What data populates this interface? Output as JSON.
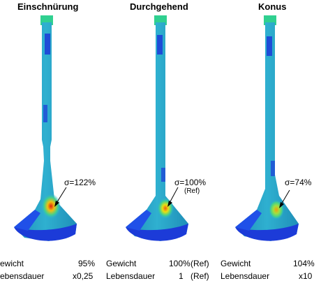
{
  "panels": [
    {
      "title": "Einschnürung",
      "stress": "σ=122%",
      "stress_ref": "",
      "weight_label": "ewicht",
      "weight_value": "95%",
      "weight_ref": "",
      "life_label": "ebensdauer",
      "life_value": "x0,25",
      "life_ref": ""
    },
    {
      "title": "Durchgehend",
      "stress": "σ=100%",
      "stress_ref": "(Ref)",
      "weight_label": "Gewicht",
      "weight_value": "100%",
      "weight_ref": "(Ref)",
      "life_label": "Lebensdauer",
      "life_value": "1",
      "life_ref": "(Ref)"
    },
    {
      "title": "Konus",
      "stress": "σ=74%",
      "stress_ref": "",
      "weight_label": "Gewicht",
      "weight_value": "104%",
      "weight_ref": "",
      "life_label": "Lebensdauer",
      "life_value": "x10",
      "life_ref": ""
    }
  ],
  "colors": {
    "stem": "#2aa6c8",
    "low": "#1c3bd8",
    "mid": "#3fd0a0",
    "high": "#e8e010",
    "hot": "#e02010"
  }
}
